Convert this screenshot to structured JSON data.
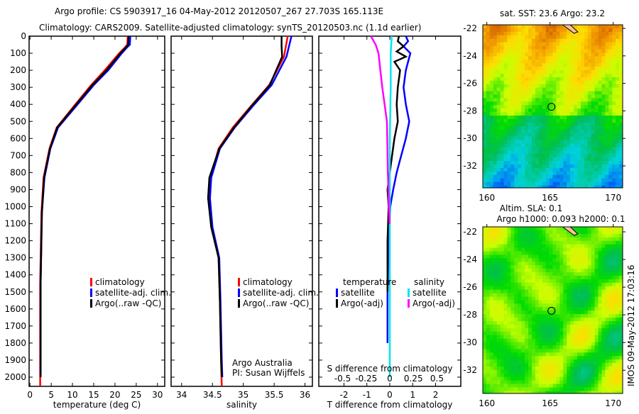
{
  "title_line1": "Argo profile: CS 5903917_16 04-May-2012 20120507_267 27.703S 165.113E",
  "title_line2": "Climatology: CARS2009. Satellite-adjusted climatology: synTS_20120503.nc (1.1d earlier)",
  "side_stamp": "IMOS 09-May-2012 17:03:16",
  "colors": {
    "climatology": "#ff0000",
    "satellite": "#0000ff",
    "argo": "#000000",
    "s_satellite": "#00e5ee",
    "s_argo": "#ff00ff"
  },
  "chart_data": [
    {
      "type": "line",
      "name": "temperature",
      "xlabel": "temperature (deg C)",
      "ylabel": "depth",
      "xlim": [
        -0.2,
        31.7
      ],
      "ylim": [
        2054,
        0
      ],
      "xticks": [
        0,
        5,
        10,
        15,
        20,
        25,
        30
      ],
      "yticks": [
        0,
        100,
        200,
        300,
        400,
        500,
        600,
        700,
        800,
        900,
        1000,
        1100,
        1200,
        1300,
        1400,
        1500,
        1600,
        1700,
        1800,
        1900,
        2000
      ],
      "legend": [
        "climatology",
        "satellite-adj. clim.",
        "Argo(..raw -QC)"
      ],
      "legend_placement": "lower-right",
      "series": [
        {
          "name": "climatology",
          "depth": [
            0,
            50,
            70,
            100,
            200,
            287,
            412,
            536,
            660,
            830,
            1035,
            1450,
            2050
          ],
          "values": [
            23.0,
            22.9,
            22.2,
            21.0,
            17.6,
            14.4,
            10.3,
            6.3,
            4.6,
            3.2,
            2.7,
            2.4,
            2.4
          ]
        },
        {
          "name": "satellite-adj. clim.",
          "depth": [
            0,
            50,
            70,
            100,
            200,
            287,
            412,
            536,
            660,
            830,
            1035,
            1450,
            2000
          ],
          "values": [
            23.6,
            23.5,
            22.7,
            21.6,
            18.4,
            15.0,
            10.8,
            6.6,
            4.8,
            3.4,
            2.8,
            2.5,
            2.5
          ]
        },
        {
          "name": "Argo(..raw -QC)",
          "depth": [
            0,
            50,
            70,
            100,
            200,
            287,
            412,
            536,
            660,
            830,
            1035,
            1450,
            2000
          ],
          "values": [
            23.2,
            23.1,
            22.4,
            21.3,
            18.0,
            14.7,
            10.5,
            6.4,
            4.7,
            3.3,
            2.8,
            2.5,
            2.5
          ]
        }
      ]
    },
    {
      "type": "line",
      "name": "salinity",
      "xlabel": "salinity",
      "xlim": [
        33.83,
        36.12
      ],
      "ylim": [
        2054,
        0
      ],
      "xticks": [
        34,
        34.5,
        35,
        35.5,
        36
      ],
      "legend": [
        "climatology",
        "satellite-adj. clim.",
        "Argo(..raw -QC)"
      ],
      "legend_placement": "lower-right",
      "annotation": [
        "Argo Australia",
        "PI: Susan Wijffels"
      ],
      "series": [
        {
          "name": "climatology",
          "depth": [
            0,
            120,
            287,
            412,
            536,
            660,
            830,
            950,
            1120,
            1300,
            1550,
            1900,
            2050
          ],
          "values": [
            35.72,
            35.66,
            35.42,
            35.12,
            34.83,
            34.6,
            34.47,
            34.45,
            34.49,
            34.6,
            34.62,
            34.64,
            34.65
          ]
        },
        {
          "name": "satellite-adj. clim.",
          "depth": [
            0,
            120,
            287,
            412,
            536,
            660,
            830,
            950,
            1120,
            1300,
            1550,
            1900,
            2000
          ],
          "values": [
            35.78,
            35.7,
            35.46,
            35.15,
            34.86,
            34.62,
            34.48,
            34.46,
            34.5,
            34.61,
            34.63,
            34.65,
            34.66
          ]
        },
        {
          "name": "Argo(..raw -QC)",
          "depth": [
            0,
            60,
            120,
            287,
            412,
            536,
            660,
            830,
            950,
            1120,
            1300,
            1550,
            1900,
            2000
          ],
          "values": [
            35.62,
            35.62,
            35.63,
            35.43,
            35.13,
            34.85,
            34.61,
            34.45,
            34.43,
            34.48,
            34.6,
            34.62,
            34.64,
            34.65
          ]
        }
      ]
    },
    {
      "type": "line",
      "name": "differences",
      "xlabel": "T difference from climatology",
      "x2label": "S difference from climatology",
      "xlim": [
        -3.1,
        3.1
      ],
      "ylim": [
        2054,
        0
      ],
      "xticks": [
        "-2",
        "-1",
        "0",
        "1",
        "2"
      ],
      "x2ticks": [
        "-0.5",
        "-0.25",
        "0",
        "0.25",
        "0.5"
      ],
      "legend_headers": [
        "temperature",
        "salinity"
      ],
      "legend": [
        "satellite",
        "Argo(-adj)",
        "satellite",
        "Argo(-adj)"
      ],
      "series": [
        {
          "name": "T satellite",
          "units": "T",
          "depth": [
            0,
            30,
            60,
            100,
            200,
            300,
            400,
            500,
            600,
            700,
            800,
            900,
            1000,
            1200,
            1500,
            1800
          ],
          "values": [
            0.7,
            0.8,
            0.6,
            0.9,
            0.7,
            0.6,
            0.7,
            0.85,
            0.7,
            0.5,
            0.3,
            0.15,
            0.02,
            -0.05,
            -0.1,
            -0.1
          ]
        },
        {
          "name": "T Argo(-adj)",
          "units": "T",
          "depth": [
            0,
            30,
            60,
            90,
            120,
            150,
            200,
            300,
            400,
            500,
            600,
            700,
            800,
            900,
            1000,
            1200,
            1500
          ],
          "values": [
            0.4,
            0.35,
            0.6,
            0.3,
            0.7,
            0.2,
            0.45,
            0.35,
            0.3,
            0.35,
            0.2,
            0.1,
            0.0,
            -0.1,
            -0.05,
            -0.1,
            -0.1
          ]
        },
        {
          "name": "S satellite",
          "units": "S",
          "depth": [
            0,
            100,
            300,
            600,
            1000,
            1500,
            2000
          ],
          "values": [
            0.02,
            0.01,
            0.01,
            0.0,
            0.0,
            0.0,
            0.0
          ]
        },
        {
          "name": "S Argo(-adj)",
          "units": "S",
          "depth": [
            0,
            50,
            100,
            200,
            300,
            500,
            800,
            1000,
            1100
          ],
          "values": [
            -0.2,
            -0.15,
            -0.12,
            -0.1,
            -0.08,
            -0.03,
            -0.02,
            -0.01,
            0.0
          ]
        }
      ]
    },
    {
      "type": "heatmap",
      "name": "sst-map",
      "title": "sat. SST: 23.6 Argo: 23.2",
      "xlim": [
        159.68,
        170.75
      ],
      "ylim": [
        -33.6,
        -21.74
      ],
      "xticks": [
        160,
        165,
        170
      ],
      "yticks": [
        -22,
        -24,
        -26,
        -28,
        -30,
        -32
      ],
      "argo_position": [
        165.113,
        -27.703
      ]
    },
    {
      "type": "heatmap",
      "name": "sla-map",
      "title": [
        "Altim. SLA: 0.1",
        "Argo h1000: 0.093 h2000: 0.1"
      ],
      "xlim": [
        159.68,
        170.75
      ],
      "ylim": [
        -33.68,
        -21.64
      ],
      "xticks": [
        160,
        165,
        170
      ],
      "yticks": [
        -22,
        -24,
        -26,
        -28,
        -30,
        -32
      ],
      "argo_position": [
        165.113,
        -27.703
      ]
    }
  ]
}
